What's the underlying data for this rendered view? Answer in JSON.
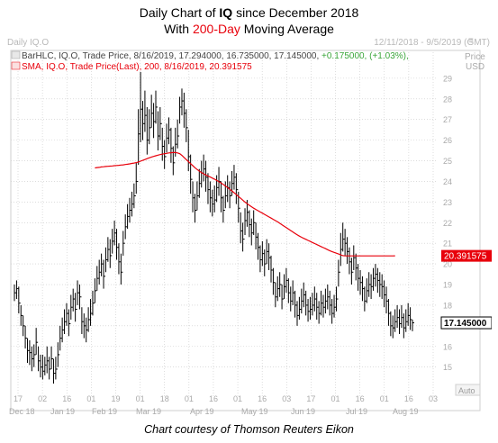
{
  "header": {
    "title_pre": "Daily Chart of ",
    "title_bold": "IQ",
    "title_post": " since December 2018",
    "subtitle_pre": "With ",
    "subtitle_red": "200-Day",
    "subtitle_post": " Moving Average"
  },
  "panel": {
    "name": "Daily IQ.O",
    "range": "12/11/2018 - 9/5/2019 (GMT)",
    "price_label": "Price",
    "currency": "USD",
    "auto_label": "Auto"
  },
  "legend": {
    "bar_text": "BarHLC, IQ.O, Trade Price, 8/16/2019, 17.294000, 16.735000, 17.145000,",
    "bar_change": " +0.175000, (+1.03%),",
    "sma_text": "SMA, IQ.O, Trade Price(Last),  200, 8/16/2019, 20.391575"
  },
  "footer": "Chart courtesy of Thomson Reuters Eikon",
  "colors": {
    "bars": "#000000",
    "sma": "#e8000b",
    "grid": "#c8c8c8",
    "axis_text": "#aaaaaa",
    "highlight": "#e8000b"
  },
  "chart_data": {
    "type": "line",
    "title": "Daily Chart of IQ since December 2018",
    "subtitle": "With 200-Day Moving Average",
    "y_ticks": [
      15,
      16,
      17,
      18,
      19,
      20,
      21,
      22,
      23,
      24,
      25,
      26,
      27,
      28,
      29
    ],
    "ylim": [
      14.2,
      29.3
    ],
    "y_axis_side": "right",
    "x_day_ticks": [
      "17",
      "02",
      "16",
      "01",
      "19",
      "01",
      "18",
      "01",
      "16",
      "01",
      "16",
      "03",
      "17",
      "01",
      "16",
      "01",
      "16",
      "03"
    ],
    "x_month_labels": [
      "Dec 18",
      "Jan 19",
      "Feb 19",
      "Mar 19",
      "Apr 19",
      "May 19",
      "Jun 19",
      "Jul 19",
      "Aug 19"
    ],
    "last_close_label": "17.145000",
    "sma_last_label": "20.391575",
    "series": [
      {
        "name": "BarHLC, IQ.O, Trade Price",
        "style": "hlc-bars",
        "close": [
          18.6,
          18.8,
          18.1,
          17.5,
          17.0,
          16.4,
          15.8,
          15.7,
          15.4,
          15.6,
          16.2,
          15.3,
          15.0,
          14.8,
          15.1,
          15.3,
          14.9,
          15.4,
          14.7,
          14.9,
          15.6,
          16.4,
          16.8,
          17.2,
          17.6,
          17.1,
          17.9,
          18.3,
          17.8,
          18.6,
          18.4,
          17.2,
          17.0,
          16.8,
          17.3,
          17.6,
          18.1,
          18.7,
          19.3,
          19.6,
          20.0,
          19.4,
          20.2,
          20.7,
          20.4,
          21.1,
          21.5,
          20.8,
          20.1,
          19.6,
          21.0,
          21.8,
          22.3,
          22.6,
          22.9,
          23.3,
          24.0,
          26.3,
          27.5,
          26.8,
          27.2,
          26.0,
          26.6,
          27.3,
          26.9,
          27.6,
          26.2,
          26.8,
          25.7,
          25.2,
          26.1,
          26.5,
          25.6,
          24.9,
          25.8,
          26.2,
          27.6,
          27.9,
          27.3,
          26.6,
          25.2,
          24.1,
          23.2,
          22.6,
          23.3,
          23.9,
          24.4,
          24.6,
          24.2,
          23.6,
          23.2,
          22.9,
          23.1,
          23.7,
          24.0,
          23.2,
          22.6,
          23.3,
          23.7,
          23.3,
          23.9,
          24.2,
          23.6,
          22.7,
          21.6,
          21.2,
          22.1,
          22.5,
          21.9,
          21.5,
          22.0,
          21.3,
          20.8,
          20.2,
          20.5,
          20.0,
          20.6,
          20.3,
          19.7,
          19.1,
          18.4,
          18.8,
          19.0,
          18.3,
          18.9,
          19.2,
          18.6,
          18.2,
          18.6,
          18.0,
          17.5,
          17.8,
          18.2,
          18.5,
          18.0,
          17.7,
          17.8,
          18.0,
          18.3,
          17.9,
          17.6,
          18.1,
          17.9,
          18.2,
          18.4,
          18.0,
          17.6,
          17.9,
          18.3,
          19.6,
          20.7,
          21.2,
          21.0,
          20.6,
          20.1,
          19.6,
          20.3,
          19.8,
          19.3,
          19.1,
          18.8,
          18.2,
          18.7,
          19.0,
          18.9,
          19.3,
          19.5,
          19.2,
          19.0,
          18.9,
          18.5,
          18.2,
          17.6,
          17.0,
          16.9,
          17.2,
          17.4,
          17.1,
          17.4,
          16.9,
          17.2,
          17.5,
          17.3,
          17.145
        ],
        "high": [
          19.0,
          19.2,
          18.9,
          18.0,
          17.5,
          17.0,
          16.4,
          16.3,
          16.0,
          16.1,
          16.9,
          16.0,
          15.6,
          15.6,
          15.5,
          16.0,
          15.5,
          16.0,
          15.4,
          15.5,
          16.2,
          17.0,
          17.4,
          17.8,
          18.1,
          17.8,
          18.5,
          18.8,
          18.6,
          19.2,
          19.0,
          17.9,
          17.6,
          17.4,
          17.9,
          18.3,
          18.7,
          19.3,
          19.9,
          20.2,
          20.5,
          20.2,
          20.8,
          21.3,
          21.2,
          21.7,
          22.1,
          21.7,
          21.0,
          20.5,
          21.6,
          22.4,
          22.9,
          23.2,
          23.5,
          23.9,
          24.9,
          27.5,
          29.3,
          27.9,
          28.4,
          27.6,
          27.5,
          28.2,
          27.8,
          28.4,
          27.4,
          27.6,
          26.6,
          26.0,
          26.8,
          27.1,
          26.6,
          25.7,
          26.6,
          27.0,
          28.1,
          28.5,
          28.3,
          27.5,
          26.5,
          25.3,
          24.0,
          23.4,
          24.0,
          24.6,
          25.0,
          25.3,
          25.0,
          24.4,
          24.0,
          23.6,
          23.8,
          24.3,
          24.7,
          24.0,
          23.3,
          24.0,
          24.3,
          24.0,
          24.5,
          24.8,
          24.4,
          23.5,
          22.5,
          22.0,
          22.7,
          23.1,
          22.6,
          22.2,
          22.6,
          22.0,
          21.5,
          20.9,
          21.1,
          20.7,
          21.2,
          21.0,
          20.4,
          19.8,
          19.1,
          19.4,
          19.6,
          19.0,
          19.5,
          19.8,
          19.3,
          18.9,
          19.2,
          18.7,
          18.2,
          18.4,
          18.8,
          19.1,
          18.7,
          18.3,
          18.4,
          18.6,
          18.9,
          18.6,
          18.2,
          18.7,
          18.5,
          18.8,
          19.0,
          18.7,
          18.3,
          18.5,
          18.9,
          20.2,
          21.5,
          22.0,
          21.7,
          21.3,
          20.8,
          20.3,
          20.9,
          20.5,
          20.0,
          19.7,
          19.4,
          18.9,
          19.3,
          19.6,
          19.5,
          19.8,
          20.0,
          19.8,
          19.6,
          19.5,
          19.2,
          18.9,
          18.3,
          17.7,
          17.5,
          17.8,
          18.0,
          17.8,
          18.0,
          17.6,
          17.8,
          18.1,
          17.9,
          17.294
        ],
        "low": [
          18.2,
          18.3,
          17.6,
          17.0,
          16.5,
          15.9,
          15.2,
          15.1,
          14.8,
          15.0,
          15.6,
          14.8,
          14.5,
          14.4,
          14.6,
          14.7,
          14.4,
          14.9,
          14.2,
          14.4,
          15.0,
          15.8,
          16.2,
          16.6,
          17.0,
          16.5,
          17.3,
          17.7,
          17.2,
          18.0,
          17.8,
          16.6,
          16.4,
          16.2,
          16.7,
          17.0,
          17.5,
          18.1,
          18.7,
          19.0,
          19.4,
          18.8,
          19.6,
          20.1,
          19.8,
          20.5,
          20.9,
          20.2,
          19.5,
          19.0,
          20.4,
          21.2,
          21.7,
          22.0,
          22.3,
          22.7,
          23.4,
          24.8,
          25.9,
          26.0,
          26.4,
          25.3,
          25.8,
          26.6,
          26.1,
          26.8,
          25.5,
          26.0,
          25.0,
          24.6,
          25.4,
          25.8,
          24.9,
          24.3,
          25.2,
          25.6,
          26.8,
          27.2,
          26.6,
          25.9,
          24.5,
          23.4,
          22.5,
          22.0,
          22.6,
          23.2,
          23.7,
          24.0,
          23.5,
          22.9,
          22.5,
          22.3,
          22.5,
          23.0,
          23.3,
          22.5,
          22.0,
          22.7,
          23.0,
          22.7,
          23.3,
          23.6,
          22.9,
          22.0,
          21.0,
          20.6,
          21.4,
          21.8,
          21.3,
          20.9,
          21.4,
          20.7,
          20.2,
          19.6,
          19.9,
          19.4,
          20.0,
          19.7,
          19.1,
          18.5,
          17.9,
          18.2,
          18.4,
          17.8,
          18.3,
          18.6,
          18.1,
          17.7,
          18.0,
          17.4,
          17.0,
          17.3,
          17.6,
          17.9,
          17.5,
          17.2,
          17.3,
          17.5,
          17.7,
          17.3,
          17.1,
          17.5,
          17.4,
          17.6,
          17.8,
          17.5,
          17.1,
          17.4,
          17.7,
          18.9,
          19.9,
          20.6,
          20.4,
          20.0,
          19.5,
          19.0,
          19.7,
          19.2,
          18.7,
          18.5,
          18.2,
          17.7,
          18.1,
          18.4,
          18.3,
          18.7,
          18.9,
          18.6,
          18.4,
          18.3,
          17.9,
          17.6,
          17.0,
          16.5,
          16.4,
          16.7,
          16.9,
          16.6,
          16.9,
          16.4,
          16.7,
          17.0,
          16.8,
          16.735
        ]
      },
      {
        "name": "SMA, IQ.O, Trade Price(Last), 200",
        "style": "line",
        "start_index": 37,
        "values": [
          24.65,
          24.67,
          24.68,
          24.7,
          24.71,
          24.72,
          24.73,
          24.74,
          24.75,
          24.76,
          24.77,
          24.78,
          24.79,
          24.8,
          24.82,
          24.83,
          24.85,
          24.87,
          24.89,
          24.91,
          24.94,
          24.98,
          25.02,
          25.06,
          25.1,
          25.14,
          25.18,
          25.21,
          25.24,
          25.27,
          25.3,
          25.32,
          25.34,
          25.36,
          25.38,
          25.39,
          25.4,
          25.4,
          25.38,
          25.34,
          25.26,
          25.16,
          25.06,
          24.96,
          24.86,
          24.76,
          24.66,
          24.58,
          24.5,
          24.43,
          24.37,
          24.31,
          24.26,
          24.21,
          24.16,
          24.11,
          24.05,
          23.99,
          23.92,
          23.85,
          23.78,
          23.7,
          23.62,
          23.54,
          23.45,
          23.36,
          23.27,
          23.18,
          23.09,
          23.0,
          22.92,
          22.84,
          22.77,
          22.7,
          22.64,
          22.58,
          22.52,
          22.46,
          22.4,
          22.34,
          22.28,
          22.22,
          22.16,
          22.1,
          22.04,
          21.97,
          21.9,
          21.83,
          21.76,
          21.69,
          21.62,
          21.55,
          21.48,
          21.41,
          21.35,
          21.29,
          21.24,
          21.19,
          21.14,
          21.09,
          21.04,
          20.99,
          20.94,
          20.89,
          20.84,
          20.79,
          20.74,
          20.69,
          20.64,
          20.6,
          20.56,
          20.52,
          20.48,
          20.44,
          20.4,
          20.39,
          20.39,
          20.39,
          20.39,
          20.39,
          20.39,
          20.39,
          20.39,
          20.39,
          20.39,
          20.39,
          20.39,
          20.39,
          20.39,
          20.39,
          20.39,
          20.39,
          20.39,
          20.39,
          20.39,
          20.39,
          20.39,
          20.39,
          20.391575
        ]
      }
    ]
  }
}
